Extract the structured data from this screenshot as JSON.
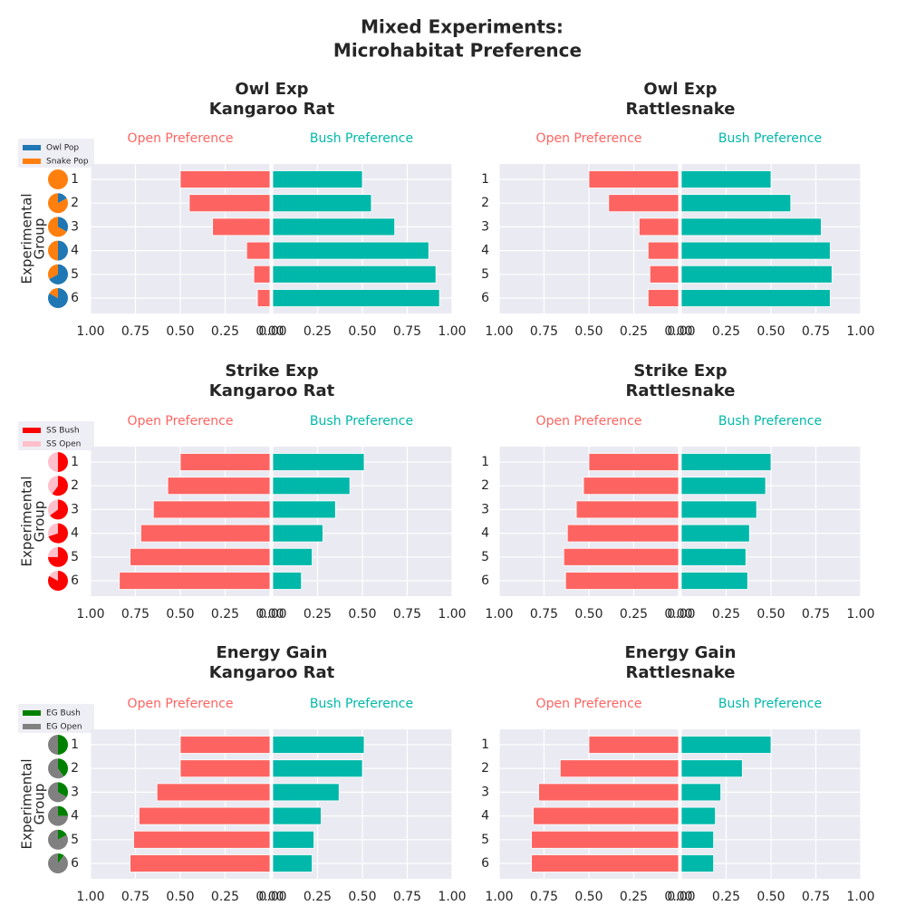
{
  "title_lines": [
    "Mixed Experiments:",
    "Microhabitat Preference"
  ],
  "chart_data": [
    {
      "type": "diverging_bar",
      "title_lines": [
        "Owl Exp",
        "Kangaroo Rat"
      ],
      "categories": [
        "1",
        "2",
        "3",
        "4",
        "5",
        "6"
      ],
      "series": [
        {
          "name": "Open Preference",
          "color": "#fd6461",
          "values": [
            0.5,
            0.45,
            0.32,
            0.13,
            0.09,
            0.07
          ]
        },
        {
          "name": "Bush Preference",
          "color": "#00b8a9",
          "values": [
            0.5,
            0.55,
            0.68,
            0.87,
            0.91,
            0.93
          ]
        }
      ],
      "xlim": [
        0,
        1
      ],
      "xticks": [
        {
          "value": 0,
          "label": "0.00"
        },
        {
          "value": 0.25,
          "label": "0.25"
        },
        {
          "value": 0.5,
          "label": "0.50"
        },
        {
          "value": 0.75,
          "label": "0.75"
        },
        {
          "value": 1,
          "label": "1.00"
        }
      ],
      "grid": true,
      "ylabel_lines": [
        "Experimental",
        "Group"
      ],
      "glyphs": {
        "type": "pie",
        "series": [
          {
            "name": "Owl Pop",
            "color": "#1f77b4",
            "values": [
              0,
              0.17,
              0.33,
              0.5,
              0.67,
              0.83
            ]
          },
          {
            "name": "Snake Pop",
            "color": "#ff7f0e",
            "values": [
              1,
              0.83,
              0.67,
              0.5,
              0.33,
              0.17
            ]
          }
        ]
      }
    },
    {
      "type": "diverging_bar",
      "title_lines": [
        "Owl Exp",
        "Rattlesnake"
      ],
      "categories": [
        "1",
        "2",
        "3",
        "4",
        "5",
        "6"
      ],
      "series": [
        {
          "name": "Open Preference",
          "color": "#fd6461",
          "values": [
            0.5,
            0.39,
            0.22,
            0.17,
            0.16,
            0.17
          ]
        },
        {
          "name": "Bush Preference",
          "color": "#00b8a9",
          "values": [
            0.5,
            0.61,
            0.78,
            0.83,
            0.84,
            0.83
          ]
        }
      ],
      "xlim": [
        0,
        1
      ],
      "xticks": [
        {
          "value": 0,
          "label": "0.00"
        },
        {
          "value": 0.25,
          "label": "0.25"
        },
        {
          "value": 0.5,
          "label": "0.50"
        },
        {
          "value": 0.75,
          "label": "0.75"
        },
        {
          "value": 1,
          "label": "1.00"
        }
      ],
      "grid": true
    },
    {
      "type": "diverging_bar",
      "title_lines": [
        "Strike Exp",
        "Kangaroo Rat"
      ],
      "categories": [
        "1",
        "2",
        "3",
        "4",
        "5",
        "6"
      ],
      "series": [
        {
          "name": "Open Preference",
          "color": "#fd6461",
          "values": [
            0.5,
            0.57,
            0.65,
            0.72,
            0.78,
            0.84
          ]
        },
        {
          "name": "Bush Preference",
          "color": "#00b8a9",
          "values": [
            0.51,
            0.43,
            0.35,
            0.28,
            0.22,
            0.16
          ]
        }
      ],
      "xlim": [
        0,
        1
      ],
      "xticks": [
        {
          "value": 0,
          "label": "0.00"
        },
        {
          "value": 0.25,
          "label": "0.25"
        },
        {
          "value": 0.5,
          "label": "0.50"
        },
        {
          "value": 0.75,
          "label": "0.75"
        },
        {
          "value": 1,
          "label": "1.00"
        }
      ],
      "grid": true,
      "ylabel_lines": [
        "Experimental",
        "Group"
      ],
      "glyphs": {
        "type": "pie",
        "series": [
          {
            "name": "SS Bush",
            "color": "#ff0000",
            "values": [
              0.5,
              0.6,
              0.65,
              0.7,
              0.75,
              0.83
            ]
          },
          {
            "name": "SS Open",
            "color": "#ffc0cb",
            "values": [
              0.5,
              0.4,
              0.35,
              0.3,
              0.25,
              0.17
            ]
          }
        ]
      }
    },
    {
      "type": "diverging_bar",
      "title_lines": [
        "Strike Exp",
        "Rattlesnake"
      ],
      "categories": [
        "1",
        "2",
        "3",
        "4",
        "5",
        "6"
      ],
      "series": [
        {
          "name": "Open Preference",
          "color": "#fd6461",
          "values": [
            0.5,
            0.53,
            0.57,
            0.62,
            0.64,
            0.63
          ]
        },
        {
          "name": "Bush Preference",
          "color": "#00b8a9",
          "values": [
            0.5,
            0.47,
            0.42,
            0.38,
            0.36,
            0.37
          ]
        }
      ],
      "xlim": [
        0,
        1
      ],
      "xticks": [
        {
          "value": 0,
          "label": "0.00"
        },
        {
          "value": 0.25,
          "label": "0.25"
        },
        {
          "value": 0.5,
          "label": "0.50"
        },
        {
          "value": 0.75,
          "label": "0.75"
        },
        {
          "value": 1,
          "label": "1.00"
        }
      ],
      "grid": true
    },
    {
      "type": "diverging_bar",
      "title_lines": [
        "Energy Gain",
        "Kangaroo Rat"
      ],
      "categories": [
        "1",
        "2",
        "3",
        "4",
        "5",
        "6"
      ],
      "series": [
        {
          "name": "Open Preference",
          "color": "#fd6461",
          "values": [
            0.5,
            0.5,
            0.63,
            0.73,
            0.76,
            0.78
          ]
        },
        {
          "name": "Bush Preference",
          "color": "#00b8a9",
          "values": [
            0.51,
            0.5,
            0.37,
            0.27,
            0.23,
            0.22
          ]
        }
      ],
      "xlim": [
        0,
        1
      ],
      "xticks": [
        {
          "value": 0,
          "label": "0.00"
        },
        {
          "value": 0.25,
          "label": "0.25"
        },
        {
          "value": 0.5,
          "label": "0.50"
        },
        {
          "value": 0.75,
          "label": "0.75"
        },
        {
          "value": 1,
          "label": "1.00"
        }
      ],
      "grid": true,
      "ylabel_lines": [
        "Experimental",
        "Group"
      ],
      "glyphs": {
        "type": "pie",
        "series": [
          {
            "name": "EG Bush",
            "color": "#008000",
            "values": [
              0.5,
              0.4,
              0.33,
              0.25,
              0.17,
              0.1
            ]
          },
          {
            "name": "EG Open",
            "color": "#808080",
            "values": [
              0.5,
              0.6,
              0.67,
              0.75,
              0.83,
              0.9
            ]
          }
        ]
      }
    },
    {
      "type": "diverging_bar",
      "title_lines": [
        "Energy Gain",
        "Rattlesnake"
      ],
      "categories": [
        "1",
        "2",
        "3",
        "4",
        "5",
        "6"
      ],
      "series": [
        {
          "name": "Open Preference",
          "color": "#fd6461",
          "values": [
            0.5,
            0.66,
            0.78,
            0.81,
            0.82,
            0.82
          ]
        },
        {
          "name": "Bush Preference",
          "color": "#00b8a9",
          "values": [
            0.5,
            0.34,
            0.22,
            0.19,
            0.18,
            0.18
          ]
        }
      ],
      "xlim": [
        0,
        1
      ],
      "xticks": [
        {
          "value": 0,
          "label": "0.00"
        },
        {
          "value": 0.25,
          "label": "0.25"
        },
        {
          "value": 0.5,
          "label": "0.50"
        },
        {
          "value": 0.75,
          "label": "0.75"
        },
        {
          "value": 1,
          "label": "1.00"
        }
      ],
      "grid": true
    }
  ]
}
